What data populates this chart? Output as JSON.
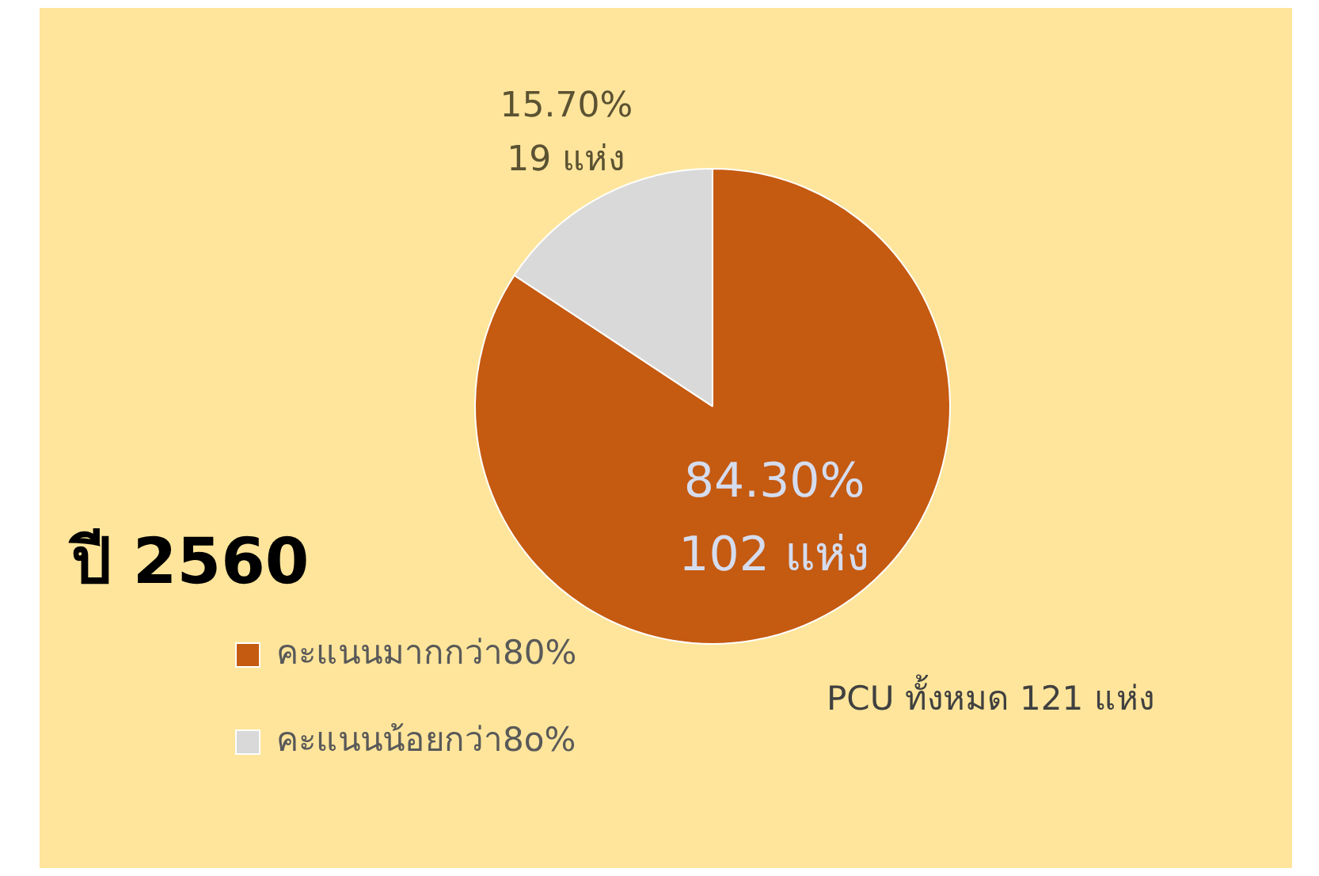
{
  "chart_data": {
    "type": "pie",
    "title": "ปี 2560",
    "categories": [
      "คะแนนมากกว่า80%",
      "คะแนนน้อยกว่า8o%"
    ],
    "values": [
      102,
      19
    ],
    "colors": [
      "#c55a11",
      "#d9d9d9"
    ],
    "value_labels": [
      "84.30%\n102 แห่ง",
      "15.70%\n19 แห่ง"
    ],
    "legend": "bottom left",
    "annotations": [
      "PCU ทั้งหมด 121 แห่ง"
    ]
  }
}
